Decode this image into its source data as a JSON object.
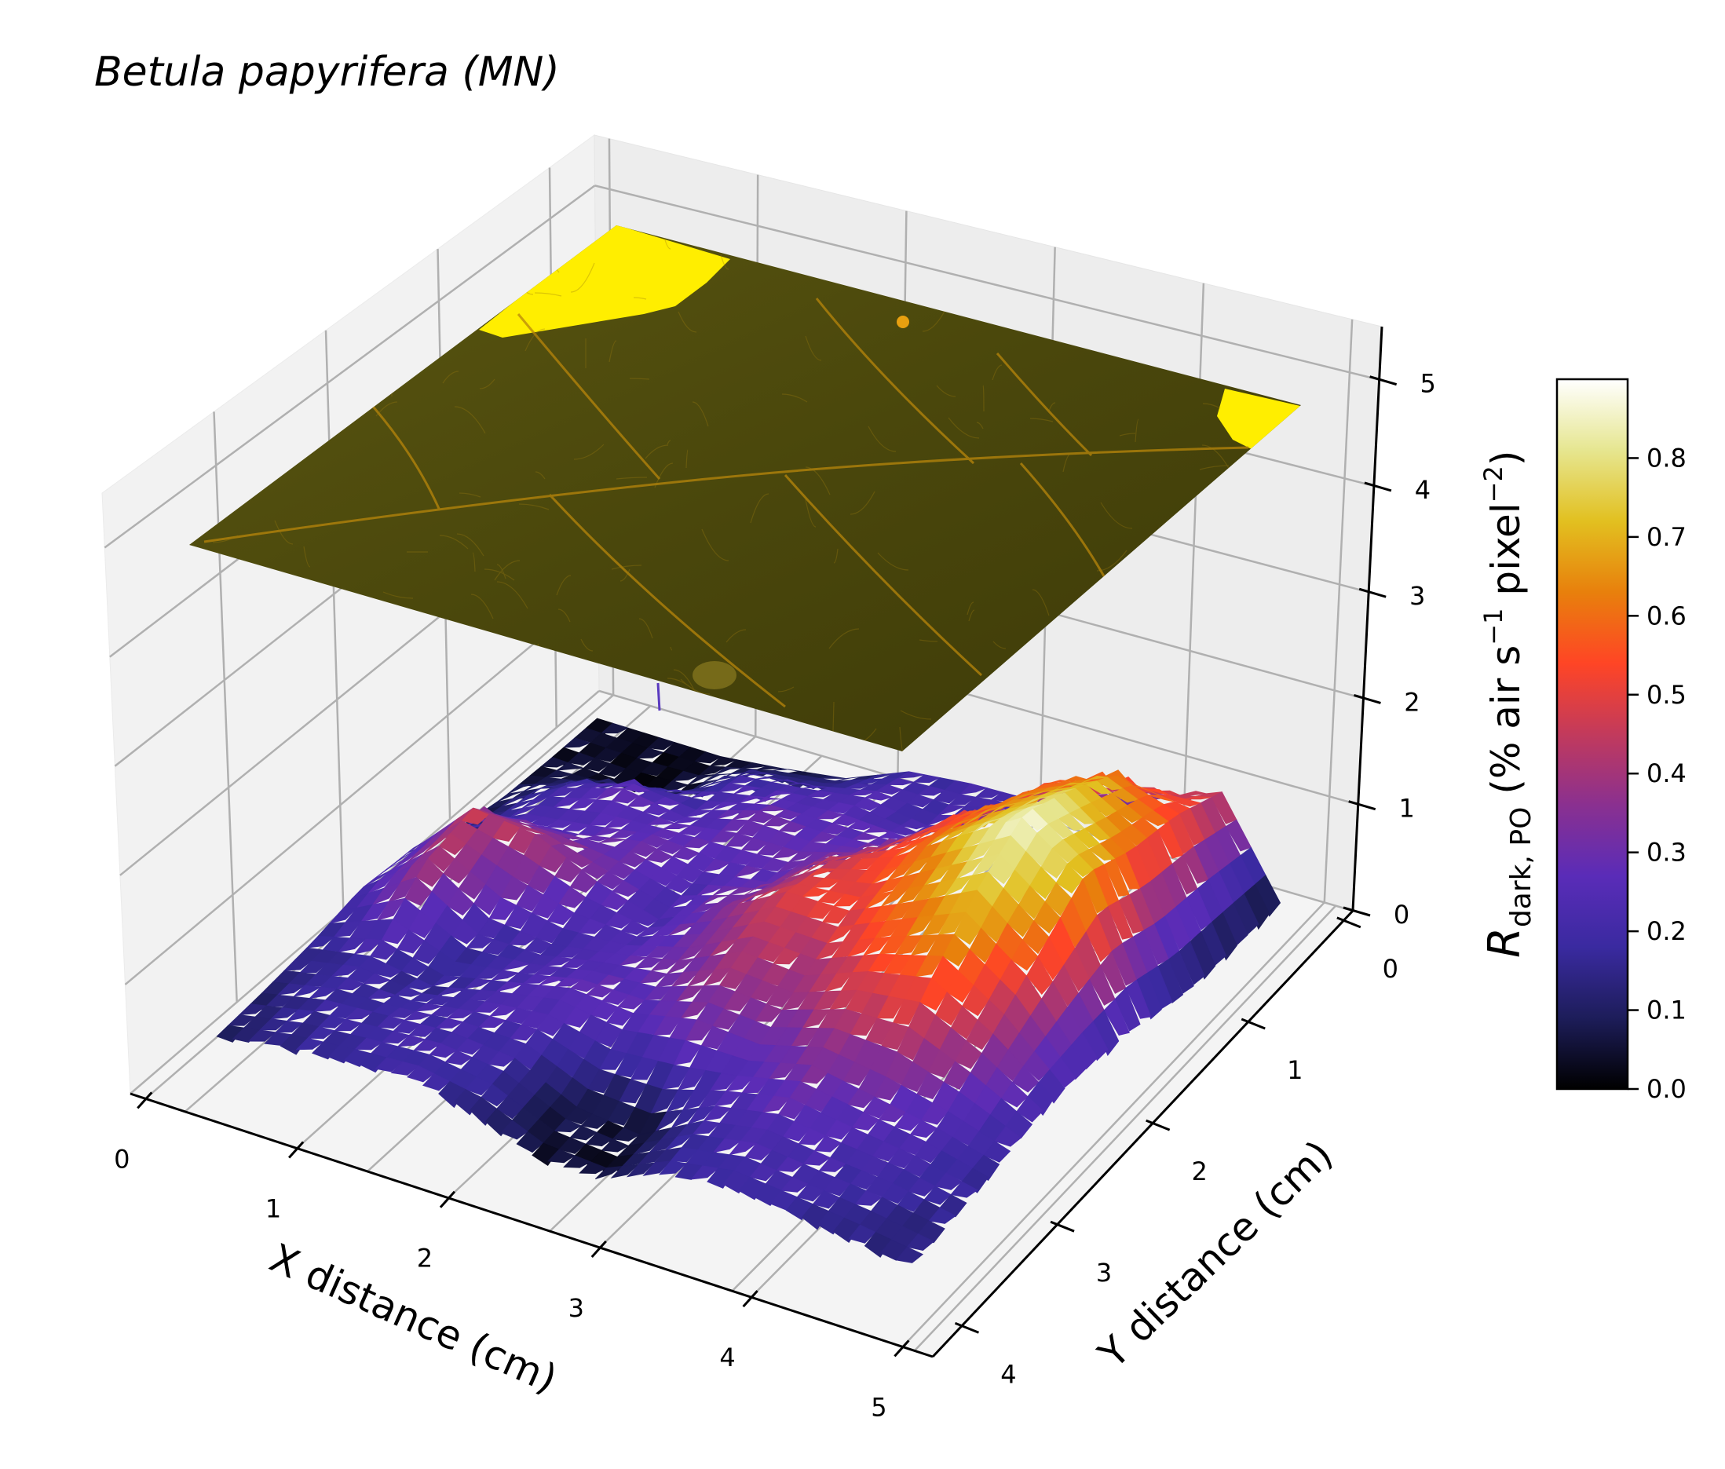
{
  "title": "Betula papyrifera (MN)",
  "chart_data": {
    "type": "surface3d",
    "title": "Betula papyrifera (MN)",
    "xlabel": "X distance (cm)",
    "ylabel": "Y distance (cm)",
    "zlabel_main": "R",
    "zlabel_sub": "dark, PO",
    "zlabel_rest": " (% air s",
    "zlabel_sup1": "−1",
    "zlabel_mid": " pixel",
    "zlabel_sup2": "−2",
    "zlabel_end": ")",
    "xlim": [
      0,
      5
    ],
    "ylim": [
      0,
      4
    ],
    "zlim": [
      0,
      5.5
    ],
    "x_ticks": [
      "0",
      "1",
      "2",
      "3",
      "4",
      "5"
    ],
    "y_ticks": [
      "0",
      "1",
      "2",
      "3",
      "4"
    ],
    "z_ticks": [
      "0",
      "1",
      "2",
      "3",
      "4",
      "5"
    ],
    "grid": true,
    "colormap": "CMRmap",
    "colorbar": {
      "range": [
        0,
        0.9
      ],
      "ticks": [
        "0.0",
        "0.1",
        "0.2",
        "0.3",
        "0.4",
        "0.5",
        "0.6",
        "0.7",
        "0.8"
      ],
      "stops": [
        "#000000",
        "#1d1d5a",
        "#3a2aa0",
        "#5a2cb8",
        "#8a3090",
        "#c23a5c",
        "#ff4525",
        "#e8800c",
        "#e2c020",
        "#e6e690",
        "#ffffff"
      ]
    },
    "leaf_image_plane": {
      "z": 4.6,
      "base_color": "#4a4a0a",
      "edge_color": "#ffff00"
    },
    "surface_grid_note": "rows = y from 0 to 4, cols = x from 0 to 5; values in colorbar units",
    "surface_values": [
      [
        0.05,
        0.04,
        0.03,
        0.05,
        0.08,
        0.18,
        0.2,
        0.2,
        0.22,
        0.35,
        0.45,
        0.05
      ],
      [
        0.05,
        0.03,
        0.04,
        0.2,
        0.22,
        0.25,
        0.2,
        0.3,
        0.55,
        0.65,
        0.55,
        0.06
      ],
      [
        0.06,
        0.2,
        0.28,
        0.22,
        0.3,
        0.28,
        0.3,
        0.5,
        0.65,
        0.78,
        0.6,
        0.08
      ],
      [
        0.1,
        0.22,
        0.24,
        0.3,
        0.25,
        0.28,
        0.45,
        0.55,
        0.72,
        0.88,
        0.7,
        0.15
      ],
      [
        0.18,
        0.45,
        0.42,
        0.3,
        0.22,
        0.35,
        0.5,
        0.5,
        0.62,
        0.75,
        0.55,
        0.2
      ],
      [
        0.2,
        0.4,
        0.22,
        0.2,
        0.25,
        0.3,
        0.42,
        0.4,
        0.5,
        0.55,
        0.4,
        0.22
      ],
      [
        0.15,
        0.2,
        0.15,
        0.22,
        0.28,
        0.25,
        0.3,
        0.28,
        0.35,
        0.3,
        0.25,
        0.18
      ],
      [
        0.12,
        0.18,
        0.2,
        0.22,
        0.2,
        0.08,
        0.05,
        0.2,
        0.25,
        0.22,
        0.2,
        0.15
      ],
      [
        0.1,
        0.15,
        0.18,
        0.2,
        0.15,
        0.05,
        0.04,
        0.15,
        0.2,
        0.18,
        0.15,
        0.12
      ]
    ]
  }
}
